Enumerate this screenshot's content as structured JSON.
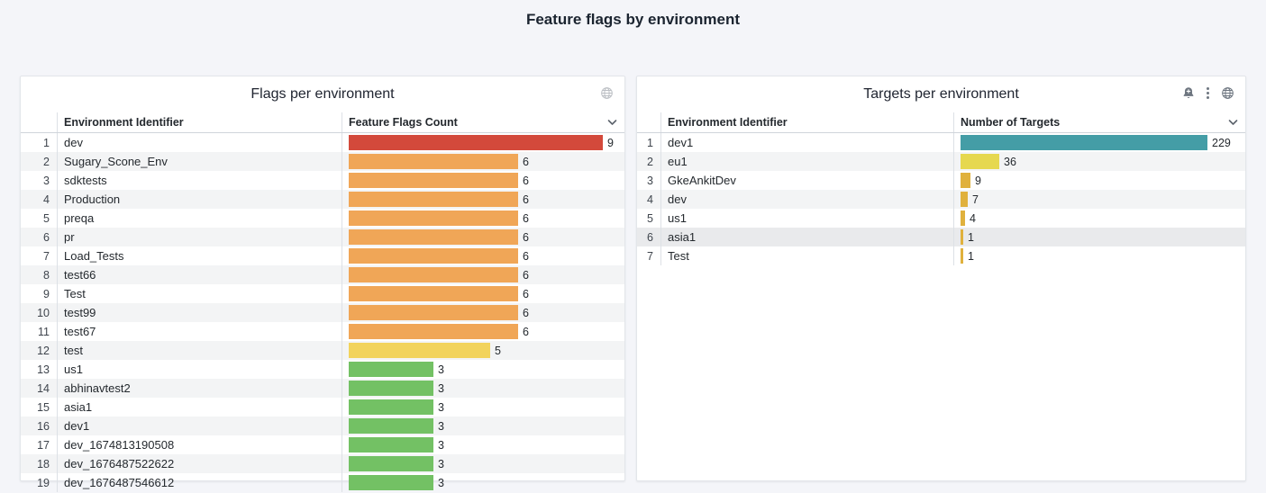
{
  "page": {
    "title": "Feature flags by environment",
    "background": "#f4f5f9"
  },
  "panels": [
    {
      "title": "Flags per environment",
      "icons": [
        "globe-icon"
      ],
      "columns": [
        "Environment Identifier",
        "Feature Flags Count"
      ],
      "chevron_icon": "chevron-down-icon",
      "max_value": 9,
      "rows": [
        {
          "n": 1,
          "id": "dev",
          "value": 9,
          "color": "#d3493b"
        },
        {
          "n": 2,
          "id": "Sugary_Scone_Env",
          "value": 6,
          "color": "#f0a657"
        },
        {
          "n": 3,
          "id": "sdktests",
          "value": 6,
          "color": "#f0a657"
        },
        {
          "n": 4,
          "id": "Production",
          "value": 6,
          "color": "#f0a657"
        },
        {
          "n": 5,
          "id": "preqa",
          "value": 6,
          "color": "#f0a657"
        },
        {
          "n": 6,
          "id": "pr",
          "value": 6,
          "color": "#f0a657"
        },
        {
          "n": 7,
          "id": "Load_Tests",
          "value": 6,
          "color": "#f0a657"
        },
        {
          "n": 8,
          "id": "test66",
          "value": 6,
          "color": "#f0a657"
        },
        {
          "n": 9,
          "id": "Test",
          "value": 6,
          "color": "#f0a657"
        },
        {
          "n": 10,
          "id": "test99",
          "value": 6,
          "color": "#f0a657"
        },
        {
          "n": 11,
          "id": "test67",
          "value": 6,
          "color": "#f0a657"
        },
        {
          "n": 12,
          "id": "test",
          "value": 5,
          "color": "#f2d35c"
        },
        {
          "n": 13,
          "id": "us1",
          "value": 3,
          "color": "#73c164"
        },
        {
          "n": 14,
          "id": "abhinavtest2",
          "value": 3,
          "color": "#73c164"
        },
        {
          "n": 15,
          "id": "asia1",
          "value": 3,
          "color": "#73c164"
        },
        {
          "n": 16,
          "id": "dev1",
          "value": 3,
          "color": "#73c164"
        },
        {
          "n": 17,
          "id": "dev_1674813190508",
          "value": 3,
          "color": "#73c164"
        },
        {
          "n": 18,
          "id": "dev_1676487522622",
          "value": 3,
          "color": "#73c164"
        },
        {
          "n": 19,
          "id": "dev_1676487546612",
          "value": 3,
          "color": "#73c164"
        }
      ]
    },
    {
      "title": "Targets per environment",
      "icons": [
        "bell-plus-icon",
        "kebab-menu-icon",
        "globe-icon"
      ],
      "columns": [
        "Environment Identifier",
        "Number of Targets"
      ],
      "chevron_icon": "chevron-down-icon",
      "max_value": 229,
      "rows": [
        {
          "n": 1,
          "id": "dev1",
          "value": 229,
          "color": "#449da6"
        },
        {
          "n": 2,
          "id": "eu1",
          "value": 36,
          "color": "#e6d84f"
        },
        {
          "n": 3,
          "id": "GkeAnkitDev",
          "value": 9,
          "color": "#e0b13d"
        },
        {
          "n": 4,
          "id": "dev",
          "value": 7,
          "color": "#e0b13d"
        },
        {
          "n": 5,
          "id": "us1",
          "value": 4,
          "color": "#e0b13d"
        },
        {
          "n": 6,
          "id": "asia1",
          "value": 1,
          "color": "#e0b13d",
          "hovered": true
        },
        {
          "n": 7,
          "id": "Test",
          "value": 1,
          "color": "#e0b13d"
        }
      ]
    }
  ]
}
